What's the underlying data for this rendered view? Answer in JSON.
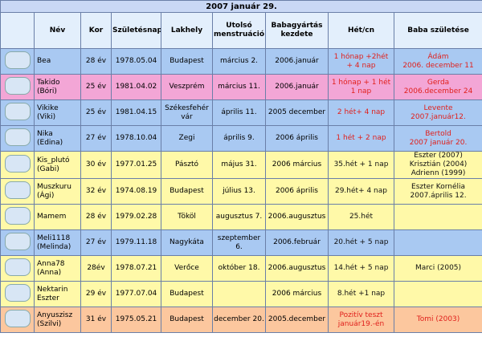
{
  "title": "2007 január 29.",
  "table": {
    "header": [
      "Név",
      "Kor",
      "Születésnap",
      "Lakhely",
      "Utolsó\nmenstruáció",
      "Babagyártás\nkezdete",
      "Hét/cn",
      "Baba születése"
    ],
    "rows": [
      {
        "color": "#a9c9f2",
        "accent": "#e0201c",
        "cells": [
          "Bea",
          "28 év",
          "1978.05.04",
          "Budapest",
          "március 2.",
          "2006.január",
          "1 hónap +2hét\n+ 4 nap",
          "Ádám\n2006. december 11"
        ]
      },
      {
        "color": "#f3a6d6",
        "accent": "#e0201c",
        "cells": [
          "Takido\n(Bóri)",
          "25 év",
          "1981.04.02",
          "Veszprém",
          "március 11.",
          "2006.január",
          "1 hónap + 1 hét\n1 nap",
          "Gerda\n2006.december 24"
        ]
      },
      {
        "color": "#a9c9f2",
        "accent": "#e0201c",
        "cells": [
          "Vikike\n(Viki)",
          "25 év",
          "1981.04.15",
          "Székesfehér\nvár",
          "április 11.",
          "2005 december",
          "2 hét+ 4 nap",
          "Levente\n2007.január12."
        ]
      },
      {
        "color": "#a9c9f2",
        "accent": "#e0201c",
        "cells": [
          "Nika\n(Edina)",
          "27 év",
          "1978.10.04",
          "Zegi",
          "április 9.",
          "2006 április",
          "1 hét + 2 nap",
          "Bertold\n2007 január 20."
        ]
      },
      {
        "color": "#fff9a8",
        "accent": "#111111",
        "cells": [
          "Kis_plutó\n(Gabi)",
          "30 év",
          "1977.01.25",
          "Pásztó",
          "május 31.",
          "2006 március",
          "35.hét + 1 nap",
          "Eszter (2007)\nKrisztián (2004)\nAdrienn (1999)"
        ]
      },
      {
        "color": "#fff9a8",
        "accent": "#111111",
        "cells": [
          "Muszkuru\n(Ági)",
          "32 év",
          "1974.08.19",
          "Budapest",
          "július 13.",
          "2006 április",
          "29.hét+ 4 nap",
          "Eszter Kornélia\n2007.április 12."
        ]
      },
      {
        "color": "#fff9a8",
        "accent": "#111111",
        "cells": [
          "Mamem",
          "28 év",
          "1979.02.28",
          "Tököl",
          "augusztus 7.",
          "2006.augusztus",
          "25.hét",
          null
        ]
      },
      {
        "color": "#a9c9f2",
        "accent": "#111111",
        "cells": [
          "Meli1118\n(Melinda)",
          "27 év",
          "1979.11.18",
          "Nagykáta",
          "szeptember 6.",
          "2006.február",
          "20.hét + 5 nap",
          null
        ]
      },
      {
        "color": "#fff9a8",
        "accent": "#111111",
        "cells": [
          "Anna78\n(Anna)",
          "28év",
          "1978.07.21",
          "Verőce",
          "október 18.",
          "2006.augusztus",
          "14.hét + 5 nap",
          "Marci (2005)"
        ]
      },
      {
        "color": "#fff9a8",
        "accent": "#111111",
        "cells": [
          "Nektarin\nEszter",
          "29 év",
          "1977.07.04",
          "Budapest",
          null,
          "2006 március",
          "8.hét +1 nap",
          null
        ]
      },
      {
        "color": "#fcc79e",
        "accent": "#e0201c",
        "cells": [
          "Anyuszisz\n(Szilvi)",
          "31 év",
          "1975.05.21",
          "Budapest",
          "december 20.",
          "2005.december",
          "Pozitív teszt\njanuár19.-én",
          "Tomi (2003)"
        ]
      }
    ]
  }
}
